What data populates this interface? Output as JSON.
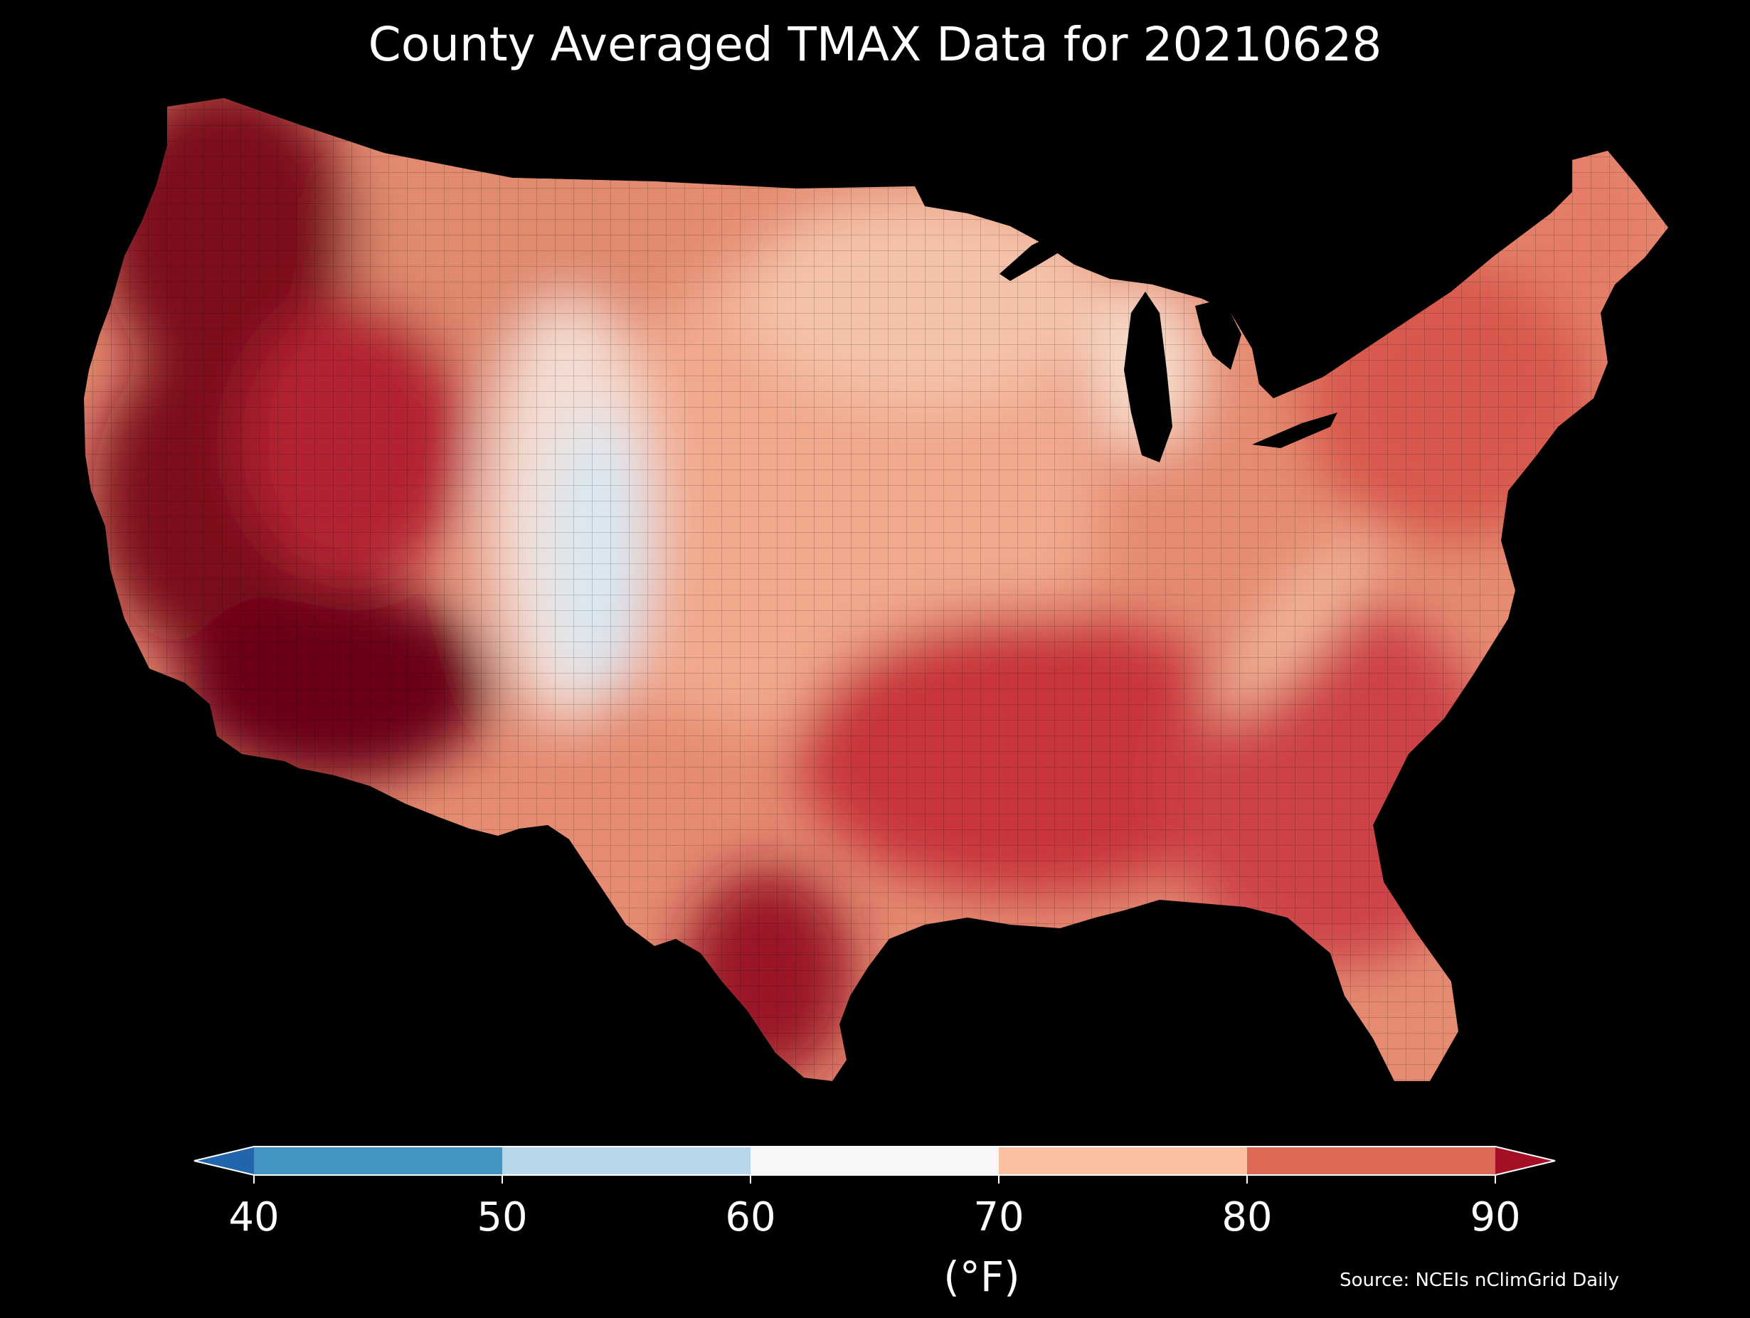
{
  "title": "County Averaged TMAX Data for 20210628",
  "colorbar": {
    "ticks": [
      "40",
      "50",
      "60",
      "70",
      "80",
      "90"
    ],
    "units_label": "(°F)",
    "extend": "both",
    "bins": [
      {
        "range": "<40",
        "color": "#2166ac"
      },
      {
        "range": "40-50",
        "color": "#4393c3"
      },
      {
        "range": "50-60",
        "color": "#b7d6e9"
      },
      {
        "range": "60-70",
        "color": "#f7f7f7"
      },
      {
        "range": "70-80",
        "color": "#f9c0a2"
      },
      {
        "range": "80-90",
        "color": "#dd6a56"
      },
      {
        "range": ">90",
        "color": "#a50f26"
      }
    ]
  },
  "source": "Source: NCEIs nClimGrid Daily",
  "map": {
    "region": "Contiguous United States",
    "background": "#000000",
    "lake_color": "#000000",
    "region_colors": {
      "pacific_northwest": "#7d0a1f",
      "california_interior": "#7d0a1f",
      "southwest_desert": "#6a0619",
      "great_basin": "#b32432",
      "northern_rockies": "#e08a6e",
      "colorado_front_range": "#f4ddd3",
      "colorado_high_peaks": "#d9e8f3",
      "great_plains": "#f2a98c",
      "upper_midwest": "#f4c2a8",
      "michigan": "#f7dccc",
      "south_central": "#c8363a",
      "texas_south": "#9a1428",
      "appalachian_ridge": "#f4b89a",
      "southeast": "#cd4246",
      "northeast": "#d8584e",
      "new_england_north": "#e57c66"
    }
  }
}
